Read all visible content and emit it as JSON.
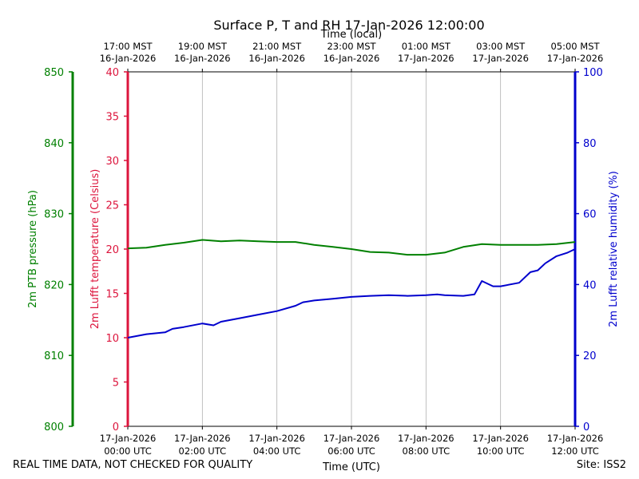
{
  "chart_data": {
    "type": "line",
    "title": "Surface P, T and RH 17-Jan-2026 12:00:00",
    "top_axis_label": "Time (local)",
    "xlabel": "Time (UTC)",
    "top_ticks": [
      [
        "17:00 MST",
        "16-Jan-2026"
      ],
      [
        "19:00 MST",
        "16-Jan-2026"
      ],
      [
        "21:00 MST",
        "16-Jan-2026"
      ],
      [
        "23:00 MST",
        "16-Jan-2026"
      ],
      [
        "01:00 MST",
        "17-Jan-2026"
      ],
      [
        "03:00 MST",
        "17-Jan-2026"
      ],
      [
        "05:00 MST",
        "17-Jan-2026"
      ]
    ],
    "bottom_ticks": [
      [
        "17-Jan-2026",
        "00:00 UTC"
      ],
      [
        "17-Jan-2026",
        "02:00 UTC"
      ],
      [
        "17-Jan-2026",
        "04:00 UTC"
      ],
      [
        "17-Jan-2026",
        "06:00 UTC"
      ],
      [
        "17-Jan-2026",
        "08:00 UTC"
      ],
      [
        "17-Jan-2026",
        "10:00 UTC"
      ],
      [
        "17-Jan-2026",
        "12:00 UTC"
      ]
    ],
    "xlim_hours": [
      0,
      12
    ],
    "axes": {
      "pressure": {
        "label": "2m PTB pressure (hPa)",
        "ylim": [
          800,
          850
        ],
        "ticks": [
          800,
          810,
          820,
          830,
          840,
          850
        ],
        "color": "#008000"
      },
      "temperature": {
        "label": "2m Lufft temperature (Celsius)",
        "ylim": [
          0,
          40
        ],
        "ticks": [
          0,
          5,
          10,
          15,
          20,
          25,
          30,
          35,
          40
        ],
        "color": "#dc143c"
      },
      "humidity": {
        "label": "2m Lufft relative humidity (%)",
        "ylim": [
          0,
          100
        ],
        "ticks": [
          0,
          20,
          40,
          60,
          80,
          100
        ],
        "color": "#0000cd"
      }
    },
    "series": [
      {
        "name": "2m PTB pressure",
        "axis": "pressure",
        "color": "#008000",
        "x": [
          0,
          0.5,
          1.0,
          1.5,
          2.0,
          2.5,
          3.0,
          3.5,
          4.0,
          4.5,
          5.0,
          5.5,
          6.0,
          6.5,
          7.0,
          7.5,
          8.0,
          8.5,
          9.0,
          9.5,
          10.0,
          10.5,
          11.0,
          11.5,
          12.0
        ],
        "y": [
          825.1,
          825.2,
          825.6,
          825.9,
          826.3,
          826.1,
          826.2,
          826.1,
          826.0,
          826.0,
          825.6,
          825.3,
          825.0,
          824.6,
          824.5,
          824.2,
          824.2,
          824.5,
          825.3,
          825.7,
          825.6,
          825.6,
          825.6,
          825.7,
          826.0
        ]
      },
      {
        "name": "2m Lufft temperature",
        "axis": "temperature",
        "color": "#dc143c",
        "x": [],
        "y": []
      },
      {
        "name": "2m Lufft relative humidity",
        "axis": "humidity",
        "color": "#0000cd",
        "x": [
          0,
          0.5,
          1.0,
          1.2,
          1.5,
          2.0,
          2.3,
          2.5,
          3.0,
          3.5,
          4.0,
          4.5,
          4.7,
          5.0,
          5.5,
          6.0,
          6.5,
          7.0,
          7.5,
          8.0,
          8.3,
          8.5,
          9.0,
          9.3,
          9.5,
          9.8,
          10.0,
          10.5,
          10.8,
          11.0,
          11.2,
          11.5,
          11.8,
          12.0
        ],
        "y": [
          25.0,
          26.0,
          26.5,
          27.5,
          28.0,
          29.0,
          28.5,
          29.5,
          30.5,
          31.5,
          32.5,
          34.0,
          35.0,
          35.5,
          36.0,
          36.5,
          36.8,
          37.0,
          36.8,
          37.0,
          37.2,
          37.0,
          36.8,
          37.2,
          41.0,
          39.5,
          39.5,
          40.5,
          43.5,
          44.0,
          46.0,
          48.0,
          49.0,
          50.0
        ]
      }
    ]
  },
  "footer": {
    "left_note": "REAL TIME DATA, NOT CHECKED FOR QUALITY",
    "site": "Site: ISS2"
  }
}
